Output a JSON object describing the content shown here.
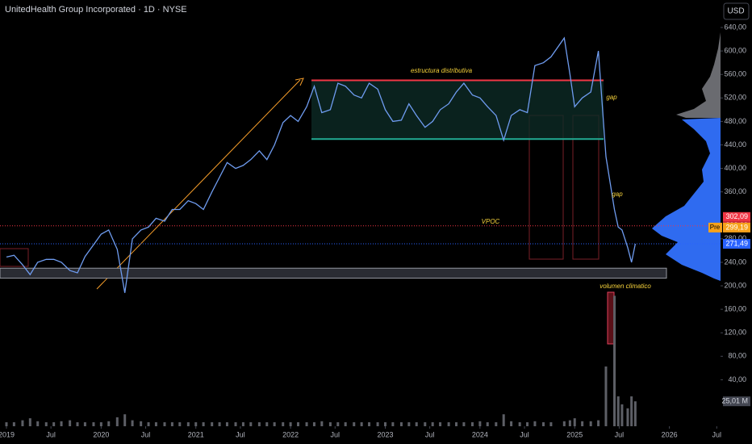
{
  "chart_data": {
    "type": "line",
    "title": "UnitedHealth Group Incorporated · 1D · NYSE",
    "currency": "USD",
    "x": [
      2019.0,
      2019.08,
      2019.17,
      2019.25,
      2019.33,
      2019.42,
      2019.5,
      2019.58,
      2019.67,
      2019.75,
      2019.83,
      2019.92,
      2020.0,
      2020.08,
      2020.17,
      2020.25,
      2020.33,
      2020.42,
      2020.5,
      2020.58,
      2020.67,
      2020.75,
      2020.83,
      2020.92,
      2021.0,
      2021.08,
      2021.17,
      2021.25,
      2021.33,
      2021.42,
      2021.5,
      2021.58,
      2021.67,
      2021.75,
      2021.83,
      2021.92,
      2022.0,
      2022.08,
      2022.17,
      2022.25,
      2022.33,
      2022.42,
      2022.5,
      2022.58,
      2022.67,
      2022.75,
      2022.83,
      2022.92,
      2023.0,
      2023.08,
      2023.17,
      2023.25,
      2023.33,
      2023.42,
      2023.5,
      2023.58,
      2023.67,
      2023.75,
      2023.83,
      2023.92,
      2024.0,
      2024.08,
      2024.17,
      2024.25,
      2024.33,
      2024.42,
      2024.5,
      2024.58,
      2024.67,
      2024.75,
      2024.89,
      2024.95,
      2025.0,
      2025.08,
      2025.17,
      2025.25,
      2025.33,
      2025.42,
      2025.46,
      2025.5,
      2025.56,
      2025.6,
      2025.64
    ],
    "series": [
      {
        "name": "UNH",
        "color": "#6f9cf0",
        "values": [
          249,
          252,
          236,
          219,
          240,
          245,
          245,
          240,
          226,
          222,
          250,
          270,
          288,
          295,
          262,
          188,
          280,
          295,
          300,
          315,
          310,
          330,
          330,
          345,
          340,
          330,
          360,
          385,
          410,
          400,
          405,
          415,
          430,
          415,
          440,
          478,
          490,
          480,
          505,
          540,
          495,
          500,
          545,
          540,
          525,
          520,
          545,
          535,
          500,
          480,
          482,
          510,
          490,
          470,
          480,
          500,
          510,
          530,
          545,
          525,
          520,
          505,
          490,
          448,
          490,
          500,
          495,
          575,
          580,
          590,
          622,
          560,
          505,
          520,
          530,
          600,
          420,
          330,
          300,
          295,
          265,
          240,
          271.49
        ]
      },
      {
        "name": "Volume",
        "color": "#5d5f66",
        "axis": "y2",
        "values": [
          4,
          4,
          6,
          8,
          5,
          4,
          4,
          5,
          6,
          4,
          4,
          4,
          4,
          5,
          9,
          12,
          6,
          5,
          4,
          4,
          4,
          4,
          4,
          4,
          4,
          4,
          4,
          4,
          4,
          4,
          4,
          4,
          4,
          4,
          4,
          4,
          4,
          4,
          4,
          4,
          5,
          4,
          4,
          4,
          4,
          4,
          4,
          4,
          4,
          4,
          4,
          4,
          4,
          4,
          4,
          4,
          4,
          4,
          4,
          4,
          5,
          4,
          4,
          12,
          5,
          4,
          4,
          5,
          4,
          4,
          5,
          6,
          8,
          5,
          5,
          6,
          60,
          131,
          30,
          22,
          18,
          30,
          25.01
        ]
      }
    ],
    "value_label": {
      "value": 25.01,
      "label": "25,01 M"
    },
    "xlim": [
      2018.932,
      2026.54
    ],
    "ylim": [
      -39.2,
      686.8
    ],
    "y2lim": [
      0,
      428
    ],
    "xticks": [
      {
        "value": 2019,
        "label": "2019"
      },
      {
        "value": 2019.47,
        "label": "Jul"
      },
      {
        "value": 2020,
        "label": "2020"
      },
      {
        "value": 2020.47,
        "label": "Jul"
      },
      {
        "value": 2021,
        "label": "2021"
      },
      {
        "value": 2021.47,
        "label": "Jul"
      },
      {
        "value": 2022,
        "label": "2022"
      },
      {
        "value": 2022.47,
        "label": "Jul"
      },
      {
        "value": 2023,
        "label": "2023"
      },
      {
        "value": 2023.47,
        "label": "Jul"
      },
      {
        "value": 2024,
        "label": "2024"
      },
      {
        "value": 2024.47,
        "label": "Jul"
      },
      {
        "value": 2025,
        "label": "2025"
      },
      {
        "value": 2025.47,
        "label": "Jul"
      },
      {
        "value": 2026,
        "label": "2026"
      },
      {
        "value": 2026.5,
        "label": "Jul"
      }
    ],
    "yticks": [
      {
        "value": 40,
        "label": "40,00"
      },
      {
        "value": 80,
        "label": "80,00"
      },
      {
        "value": 120,
        "label": "120,00"
      },
      {
        "value": 160,
        "label": "160,00"
      },
      {
        "value": 200,
        "label": "200,00"
      },
      {
        "value": 240,
        "label": "240,00"
      },
      {
        "value": 280,
        "label": "280,00"
      },
      {
        "value": 360,
        "label": "360,00"
      },
      {
        "value": 400,
        "label": "400,00"
      },
      {
        "value": 440,
        "label": "440,00"
      },
      {
        "value": 480,
        "label": "480,00"
      },
      {
        "value": 520,
        "label": "520,00"
      },
      {
        "value": 560,
        "label": "560,00"
      },
      {
        "value": 600,
        "label": "600,00"
      },
      {
        "value": 640,
        "label": "640,00"
      }
    ],
    "grid": false,
    "price_labels": [
      {
        "value": 302.09,
        "label": "302,09",
        "color": "#f23645"
      },
      {
        "value": 302.09,
        "label": "302,09",
        "color": "#c9293a"
      },
      {
        "value": 299.19,
        "label": "299,19",
        "color": "#f7a21b",
        "tag": "Pre"
      },
      {
        "value": 271.49,
        "label": "271,49",
        "color": "#2962ff"
      }
    ],
    "zone": {
      "top": 550,
      "bottom": 450
    },
    "band": {
      "top": 230,
      "bottom": 213
    },
    "annotations": [
      "estructura distributiva",
      "gap",
      "gap",
      "VPOC",
      "volumen climatico"
    ]
  }
}
